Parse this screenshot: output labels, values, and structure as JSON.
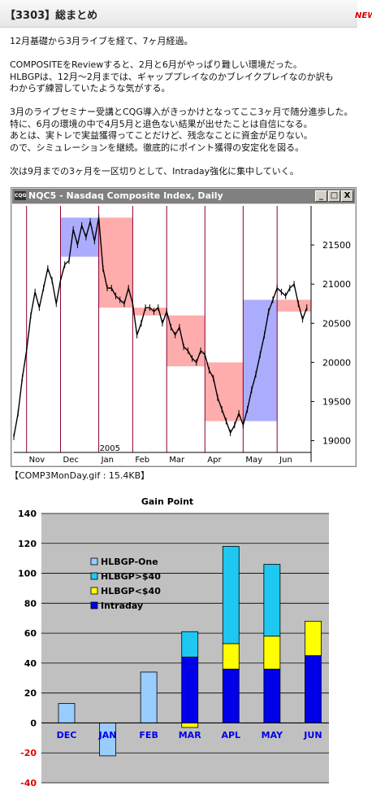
{
  "header": {
    "title": "【3303】総まとめ",
    "badge": "NEW"
  },
  "body": {
    "lines": [
      "12月基礎から3月ライブを経て、7ヶ月経過。",
      "",
      "COMPOSITEをReviewすると、2月と6月がやっぱり難しい環境だった。",
      "HLBGPは、12月〜2月までは、ギャッププレイなのかブレイクプレイなのか訳も",
      "わからず練習していたような気がする。",
      "",
      "3月のライブセミナー受講とCQG導入がきっかけとなってここ3ヶ月で随分進歩した。",
      "特に、6月の環境の中で4月5月と退色ない結果が出せたことは自信になる。",
      "あとは、実トレで実益獲得ってことだけど、残念なことに資金が足りない。",
      "ので、シミュレーションを継続。徹底的にポイント獲得の安定化を図る。",
      "",
      "次は9月までの3ヶ月を一区切りとして、Intraday強化に集中していく。"
    ]
  },
  "price_window": {
    "icon": "CQG",
    "title": "NQC5 - Nasdaq Composite Index, Daily",
    "buttons": [
      "_",
      "□",
      "X"
    ],
    "chart_data": {
      "type": "line",
      "year_label": "2005",
      "x_ticks": [
        "Nov",
        "Dec",
        "Jan",
        "Feb",
        "Mar",
        "Apr",
        "May",
        "Jun"
      ],
      "y_ticks": [
        19000,
        19500,
        20000,
        20500,
        21000,
        21500
      ],
      "ylim": [
        18850,
        22000
      ],
      "series": [
        {
          "x": 0,
          "y": 19050
        },
        {
          "x": 2,
          "y": 19350
        },
        {
          "x": 4,
          "y": 19800
        },
        {
          "x": 6,
          "y": 20150
        },
        {
          "x": 8,
          "y": 20600
        },
        {
          "x": 10,
          "y": 20900
        },
        {
          "x": 12,
          "y": 20700
        },
        {
          "x": 14,
          "y": 20950
        },
        {
          "x": 16,
          "y": 21200
        },
        {
          "x": 18,
          "y": 21050
        },
        {
          "x": 20,
          "y": 20750
        },
        {
          "x": 22,
          "y": 21050
        },
        {
          "x": 24,
          "y": 21250
        },
        {
          "x": 26,
          "y": 21300
        },
        {
          "x": 28,
          "y": 21700
        },
        {
          "x": 30,
          "y": 21500
        },
        {
          "x": 32,
          "y": 21750
        },
        {
          "x": 34,
          "y": 21600
        },
        {
          "x": 36,
          "y": 21800
        },
        {
          "x": 38,
          "y": 21550
        },
        {
          "x": 40,
          "y": 21850
        },
        {
          "x": 42,
          "y": 21200
        },
        {
          "x": 44,
          "y": 20950
        },
        {
          "x": 46,
          "y": 20950
        },
        {
          "x": 48,
          "y": 20850
        },
        {
          "x": 50,
          "y": 20800
        },
        {
          "x": 52,
          "y": 20750
        },
        {
          "x": 54,
          "y": 20950
        },
        {
          "x": 56,
          "y": 20750
        },
        {
          "x": 58,
          "y": 20350
        },
        {
          "x": 60,
          "y": 20500
        },
        {
          "x": 62,
          "y": 20700
        },
        {
          "x": 64,
          "y": 20700
        },
        {
          "x": 66,
          "y": 20650
        },
        {
          "x": 68,
          "y": 20700
        },
        {
          "x": 70,
          "y": 20500
        },
        {
          "x": 72,
          "y": 20650
        },
        {
          "x": 74,
          "y": 20450
        },
        {
          "x": 76,
          "y": 20350
        },
        {
          "x": 78,
          "y": 20450
        },
        {
          "x": 80,
          "y": 20200
        },
        {
          "x": 82,
          "y": 20150
        },
        {
          "x": 84,
          "y": 20050
        },
        {
          "x": 86,
          "y": 20000
        },
        {
          "x": 88,
          "y": 20150
        },
        {
          "x": 90,
          "y": 20100
        },
        {
          "x": 92,
          "y": 19900
        },
        {
          "x": 94,
          "y": 19800
        },
        {
          "x": 96,
          "y": 19550
        },
        {
          "x": 98,
          "y": 19400
        },
        {
          "x": 100,
          "y": 19250
        },
        {
          "x": 102,
          "y": 19100
        },
        {
          "x": 104,
          "y": 19200
        },
        {
          "x": 106,
          "y": 19350
        },
        {
          "x": 108,
          "y": 19200
        },
        {
          "x": 110,
          "y": 19400
        },
        {
          "x": 112,
          "y": 19650
        },
        {
          "x": 114,
          "y": 19850
        },
        {
          "x": 116,
          "y": 20100
        },
        {
          "x": 118,
          "y": 20350
        },
        {
          "x": 120,
          "y": 20650
        },
        {
          "x": 122,
          "y": 20800
        },
        {
          "x": 124,
          "y": 20950
        },
        {
          "x": 126,
          "y": 20900
        },
        {
          "x": 128,
          "y": 20850
        },
        {
          "x": 130,
          "y": 20950
        },
        {
          "x": 132,
          "y": 21000
        },
        {
          "x": 134,
          "y": 20750
        },
        {
          "x": 136,
          "y": 20550
        },
        {
          "x": 138,
          "y": 20700
        }
      ],
      "zones": [
        {
          "x0": 22,
          "x1": 40,
          "y0": 21350,
          "y1": 21850,
          "color": "#8080ff"
        },
        {
          "x0": 40,
          "x1": 56,
          "y0": 20700,
          "y1": 21850,
          "color": "#ff8080"
        },
        {
          "x0": 56,
          "x1": 72,
          "y0": 20600,
          "y1": 20700,
          "color": "#ff8080"
        },
        {
          "x0": 72,
          "x1": 90,
          "y0": 19950,
          "y1": 20600,
          "color": "#ff8080"
        },
        {
          "x0": 90,
          "x1": 108,
          "y0": 19250,
          "y1": 20000,
          "color": "#ff8080"
        },
        {
          "x0": 108,
          "x1": 124,
          "y0": 19250,
          "y1": 20800,
          "color": "#8080ff"
        },
        {
          "x0": 124,
          "x1": 140,
          "y0": 20650,
          "y1": 20800,
          "color": "#ff8080"
        }
      ],
      "vlines": [
        6,
        22,
        40,
        56,
        72,
        90,
        108,
        124,
        140
      ]
    }
  },
  "caption": "【COMP3MonDay.gif : 15.4KB】",
  "gain_chart": {
    "chart_data": {
      "type": "bar",
      "title": "Gain Point",
      "categories": [
        "DEC",
        "JAN",
        "FEB",
        "MAR",
        "APL",
        "MAY",
        "JUN"
      ],
      "ylim": [
        -40,
        140
      ],
      "y_ticks": [
        -40,
        -20,
        0,
        20,
        40,
        60,
        80,
        100,
        120,
        140
      ],
      "series": [
        {
          "name": "HLBGP-One",
          "color": "#99ccff",
          "values": [
            13,
            -22,
            34,
            0,
            0,
            0,
            0
          ]
        },
        {
          "name": "HLBGP>$40",
          "color": "#1ec8f0",
          "values": [
            0,
            0,
            0,
            17,
            65,
            48,
            0
          ]
        },
        {
          "name": "HLBGP<$40",
          "color": "#ffff00",
          "values": [
            0,
            0,
            0,
            -3,
            17,
            22,
            23
          ]
        },
        {
          "name": "Intraday",
          "color": "#0000e8",
          "values": [
            0,
            0,
            0,
            44,
            36,
            36,
            45
          ]
        }
      ]
    }
  }
}
